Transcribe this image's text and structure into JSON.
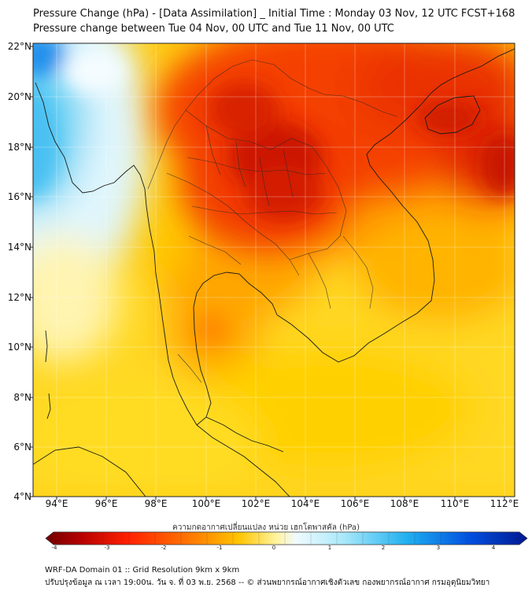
{
  "title_line1": "Pressure Change (hPa) - [Data Assimilation] _ Initial Time : Monday 03 Nov, 12 UTC FCST+168",
  "title_line2": "Pressure change between Tue 04 Nov, 00 UTC and Tue 11 Nov, 00 UTC",
  "lat_labels": [
    "22°N",
    "20°N",
    "18°N",
    "16°N",
    "14°N",
    "12°N",
    "10°N",
    "8°N",
    "6°N",
    "4°N"
  ],
  "lon_labels": [
    "94°E",
    "96°E",
    "98°E",
    "100°E",
    "102°E",
    "104°E",
    "106°E",
    "108°E",
    "110°E",
    "112°E"
  ],
  "colorbar": {
    "title": "ความกดอากาศเปลี่ยนแปลง หน่วย เฮกโตพาสคัล (hPa)",
    "ticks": [
      "-4",
      "-3",
      "-2",
      "-1",
      "0",
      "1",
      "2",
      "3",
      "4"
    ],
    "min": -4,
    "max": 4
  },
  "footer_line1": "WRF-DA Domain 01 :: Grid Resolution 9km x 9km",
  "footer_line2": "ปรับปรุงข้อมูล ณ เวลา 19:00น. วัน จ. ที่ 03 พ.ย. 2568 -- © ส่วนพยากรณ์อากาศเชิงตัวเลข กองพยากรณ์อากาศ กรมอุตุนิยมวิทยา",
  "colors": {
    "deep_red": "#c81400",
    "red": "#ea3200",
    "orange": "#ff8c00",
    "amber": "#ffc000",
    "yellow": "#ffe000",
    "light_cyan": "#cff2fb",
    "cyan": "#55c8f0",
    "blue": "#1060e8"
  }
}
